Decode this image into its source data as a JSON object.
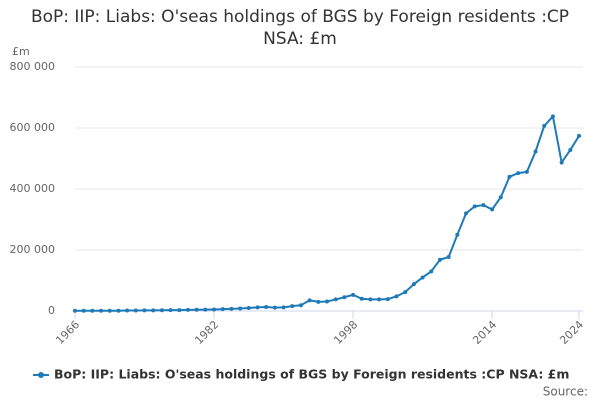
{
  "chart_data": {
    "type": "line",
    "title": "BoP: IIP: Liabs: O'seas holdings of BGS by Foreign residents :CP NSA: £m",
    "y_label": "£m",
    "source": "Source:",
    "x": [
      1966,
      1967,
      1968,
      1969,
      1970,
      1971,
      1972,
      1973,
      1974,
      1975,
      1976,
      1977,
      1978,
      1979,
      1980,
      1981,
      1982,
      1983,
      1984,
      1985,
      1986,
      1987,
      1988,
      1989,
      1990,
      1991,
      1992,
      1993,
      1994,
      1995,
      1996,
      1997,
      1998,
      1999,
      2000,
      2001,
      2002,
      2003,
      2004,
      2005,
      2006,
      2007,
      2008,
      2009,
      2010,
      2011,
      2012,
      2013,
      2014,
      2015,
      2016,
      2017,
      2018,
      2019,
      2020,
      2021,
      2022,
      2023,
      2024
    ],
    "series": [
      {
        "name": "BoP: IIP: Liabs: O'seas holdings of BGS by Foreign residents :CP NSA: £m",
        "color": "#1f7ab8",
        "values": [
          1000,
          1000,
          1000,
          1000,
          1000,
          1000,
          1500,
          1500,
          2000,
          2000,
          2500,
          3000,
          3000,
          3500,
          4000,
          4500,
          5000,
          6000,
          7000,
          8000,
          10000,
          12000,
          13000,
          11000,
          12000,
          16000,
          19000,
          35000,
          30000,
          31000,
          38000,
          45000,
          53000,
          40000,
          38000,
          38000,
          39000,
          48000,
          62000,
          88000,
          110000,
          130000,
          168000,
          177000,
          250000,
          320000,
          343000,
          347000,
          333000,
          373000,
          440000,
          452000,
          456000,
          523000,
          607000,
          638000,
          487000,
          528000,
          574000
        ]
      }
    ],
    "xlim": [
      1966,
      2024
    ],
    "xticks": [
      1966,
      1982,
      1998,
      2014,
      2024
    ],
    "ylim": [
      0,
      800000
    ],
    "yticks": [
      0,
      {
        "value": 200000,
        "label": "200 000"
      },
      {
        "value": 400000,
        "label": "400 000"
      },
      {
        "value": 600000,
        "label": "600 000"
      },
      {
        "value": 800000,
        "label": "800 000"
      }
    ],
    "grid": true
  }
}
